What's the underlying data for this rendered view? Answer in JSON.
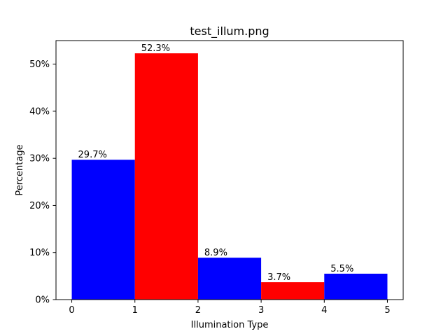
{
  "chart_data": {
    "type": "bar",
    "title": "test_illum.png",
    "xlabel": "Illumination Type",
    "ylabel": "Percentage",
    "xlim": [
      -0.25,
      5.25
    ],
    "ylim": [
      0,
      55
    ],
    "x_ticks": [
      0,
      1,
      2,
      3,
      4,
      5
    ],
    "x_tick_labels": [
      "0",
      "1",
      "2",
      "3",
      "4",
      "5"
    ],
    "y_ticks": [
      0,
      10,
      20,
      30,
      40,
      50
    ],
    "y_tick_labels": [
      "0%",
      "10%",
      "20%",
      "30%",
      "40%",
      "50%"
    ],
    "grid": false,
    "legend": "none",
    "bars": [
      {
        "x0": 0,
        "x1": 1,
        "value": 29.7,
        "label": "29.7%",
        "color": "#0000ff"
      },
      {
        "x0": 1,
        "x1": 2,
        "value": 52.3,
        "label": "52.3%",
        "color": "#ff0000"
      },
      {
        "x0": 2,
        "x1": 3,
        "value": 8.9,
        "label": "8.9%",
        "color": "#0000ff"
      },
      {
        "x0": 3,
        "x1": 4,
        "value": 3.7,
        "label": "3.7%",
        "color": "#ff0000"
      },
      {
        "x0": 4,
        "x1": 5,
        "value": 5.5,
        "label": "5.5%",
        "color": "#0000ff"
      }
    ]
  }
}
